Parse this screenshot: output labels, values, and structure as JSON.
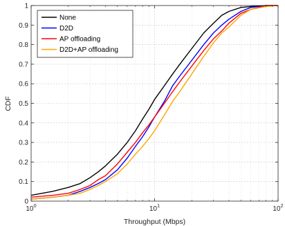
{
  "chart_data": {
    "type": "line",
    "xlabel": "Throughput (Mbps)",
    "ylabel": "CDF",
    "xscale": "log",
    "xlim": [
      1,
      100
    ],
    "ylim": [
      0,
      1
    ],
    "grid": true,
    "legend_position": "top-left",
    "x_ticks": [
      {
        "value": 1,
        "base": "10",
        "exp": "0"
      },
      {
        "value": 10,
        "base": "10",
        "exp": "1"
      },
      {
        "value": 100,
        "base": "10",
        "exp": "2"
      }
    ],
    "y_ticks": [
      "0",
      "0.1",
      "0.2",
      "0.3",
      "0.4",
      "0.5",
      "0.6",
      "0.7",
      "0.8",
      "0.9",
      "1"
    ],
    "series": [
      {
        "name": "None",
        "color": "#000000",
        "points": [
          [
            1,
            0.03
          ],
          [
            1.5,
            0.05
          ],
          [
            2,
            0.07
          ],
          [
            2.5,
            0.09
          ],
          [
            3,
            0.12
          ],
          [
            3.5,
            0.15
          ],
          [
            4,
            0.18
          ],
          [
            5,
            0.24
          ],
          [
            6,
            0.3
          ],
          [
            7,
            0.36
          ],
          [
            8,
            0.42
          ],
          [
            9,
            0.47
          ],
          [
            10,
            0.52
          ],
          [
            12,
            0.59
          ],
          [
            14,
            0.65
          ],
          [
            16,
            0.7
          ],
          [
            20,
            0.78
          ],
          [
            25,
            0.86
          ],
          [
            30,
            0.91
          ],
          [
            35,
            0.95
          ],
          [
            40,
            0.97
          ],
          [
            50,
            0.99
          ],
          [
            60,
            0.995
          ],
          [
            80,
            1
          ],
          [
            100,
            1
          ]
        ]
      },
      {
        "name": "D2D",
        "color": "#0000ff",
        "points": [
          [
            1,
            0.01
          ],
          [
            1.5,
            0.02
          ],
          [
            2,
            0.03
          ],
          [
            2.5,
            0.05
          ],
          [
            3,
            0.07
          ],
          [
            3.5,
            0.09
          ],
          [
            4,
            0.11
          ],
          [
            5,
            0.16
          ],
          [
            6,
            0.22
          ],
          [
            7,
            0.28
          ],
          [
            8,
            0.33
          ],
          [
            9,
            0.38
          ],
          [
            10,
            0.43
          ],
          [
            12,
            0.51
          ],
          [
            14,
            0.59
          ],
          [
            16,
            0.64
          ],
          [
            20,
            0.72
          ],
          [
            25,
            0.8
          ],
          [
            30,
            0.86
          ],
          [
            35,
            0.9
          ],
          [
            40,
            0.93
          ],
          [
            50,
            0.97
          ],
          [
            60,
            0.99
          ],
          [
            80,
            1
          ],
          [
            100,
            1
          ]
        ]
      },
      {
        "name": "AP offloading",
        "color": "#ff0000",
        "points": [
          [
            1,
            0.02
          ],
          [
            1.5,
            0.03
          ],
          [
            2,
            0.04
          ],
          [
            2.5,
            0.06
          ],
          [
            3,
            0.08
          ],
          [
            3.5,
            0.11
          ],
          [
            4,
            0.13
          ],
          [
            5,
            0.19
          ],
          [
            6,
            0.25
          ],
          [
            7,
            0.3
          ],
          [
            8,
            0.35
          ],
          [
            9,
            0.39
          ],
          [
            10,
            0.43
          ],
          [
            12,
            0.5
          ],
          [
            14,
            0.56
          ],
          [
            16,
            0.61
          ],
          [
            20,
            0.69
          ],
          [
            25,
            0.77
          ],
          [
            30,
            0.83
          ],
          [
            35,
            0.87
          ],
          [
            40,
            0.91
          ],
          [
            50,
            0.96
          ],
          [
            60,
            0.98
          ],
          [
            80,
            1
          ],
          [
            100,
            1
          ]
        ]
      },
      {
        "name": "D2D+AP offloading",
        "color": "#ffa500",
        "points": [
          [
            1,
            0.01
          ],
          [
            1.5,
            0.02
          ],
          [
            2,
            0.03
          ],
          [
            2.5,
            0.04
          ],
          [
            3,
            0.06
          ],
          [
            3.5,
            0.08
          ],
          [
            4,
            0.1
          ],
          [
            5,
            0.14
          ],
          [
            6,
            0.19
          ],
          [
            7,
            0.24
          ],
          [
            8,
            0.28
          ],
          [
            9,
            0.32
          ],
          [
            10,
            0.36
          ],
          [
            12,
            0.44
          ],
          [
            14,
            0.51
          ],
          [
            16,
            0.56
          ],
          [
            20,
            0.65
          ],
          [
            25,
            0.74
          ],
          [
            30,
            0.81
          ],
          [
            35,
            0.86
          ],
          [
            40,
            0.89
          ],
          [
            50,
            0.95
          ],
          [
            60,
            0.98
          ],
          [
            80,
            0.995
          ],
          [
            100,
            1
          ]
        ]
      }
    ]
  }
}
